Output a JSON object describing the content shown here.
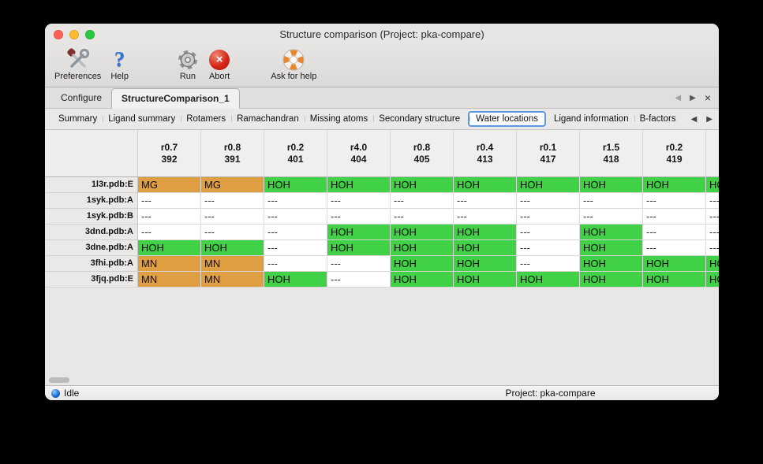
{
  "window": {
    "title": "Structure comparison (Project: pka-compare)"
  },
  "traffic_lights": {
    "close": "#ff5f57",
    "minimize": "#febc2e",
    "zoom": "#28c840"
  },
  "toolbar": {
    "items": [
      {
        "id": "preferences",
        "label": "Preferences",
        "icon": "tools-icon"
      },
      {
        "id": "help",
        "label": "Help",
        "icon": "question-mark-icon"
      },
      {
        "id": "run",
        "label": "Run",
        "icon": "gear-icon"
      },
      {
        "id": "abort",
        "label": "Abort",
        "icon": "abort-cross-icon"
      },
      {
        "id": "ask-for-help",
        "label": "Ask for help",
        "icon": "lifebuoy-icon"
      }
    ]
  },
  "tabbar": {
    "tabs": [
      {
        "label": "Configure",
        "selected": false
      },
      {
        "label": "StructureComparison_1",
        "selected": true
      }
    ],
    "prev": "◀",
    "next": "▶",
    "close": "×"
  },
  "subtabbar": {
    "tabs": [
      {
        "label": "Summary",
        "selected": false
      },
      {
        "label": "Ligand summary",
        "selected": false
      },
      {
        "label": "Rotamers",
        "selected": false
      },
      {
        "label": "Ramachandran",
        "selected": false
      },
      {
        "label": "Missing atoms",
        "selected": false
      },
      {
        "label": "Secondary structure",
        "selected": false
      },
      {
        "label": "Water locations",
        "selected": true
      },
      {
        "label": "Ligand information",
        "selected": false
      },
      {
        "label": "B-factors",
        "selected": false
      }
    ],
    "prev": "◀",
    "next": "▶"
  },
  "table": {
    "cell_colors": {
      "water": "#40d147",
      "metal": "#df9e42",
      "none": "#ffffff"
    },
    "columns": [
      {
        "line1": "r0.7",
        "line2": "392"
      },
      {
        "line1": "r0.8",
        "line2": "391"
      },
      {
        "line1": "r0.2",
        "line2": "401"
      },
      {
        "line1": "r4.0",
        "line2": "404"
      },
      {
        "line1": "r0.8",
        "line2": "405"
      },
      {
        "line1": "r0.4",
        "line2": "413"
      },
      {
        "line1": "r0.1",
        "line2": "417"
      },
      {
        "line1": "r1.5",
        "line2": "418"
      },
      {
        "line1": "r0.2",
        "line2": "419"
      },
      {
        "line1": "",
        "line2": ""
      }
    ],
    "rows": [
      {
        "label": "1l3r.pdb:E",
        "cells": [
          {
            "text": "MG",
            "type": "metal"
          },
          {
            "text": "MG",
            "type": "metal"
          },
          {
            "text": "HOH",
            "type": "water"
          },
          {
            "text": "HOH",
            "type": "water"
          },
          {
            "text": "HOH",
            "type": "water"
          },
          {
            "text": "HOH",
            "type": "water"
          },
          {
            "text": "HOH",
            "type": "water"
          },
          {
            "text": "HOH",
            "type": "water"
          },
          {
            "text": "HOH",
            "type": "water"
          },
          {
            "text": "HOH",
            "type": "water"
          }
        ]
      },
      {
        "label": "1syk.pdb:A",
        "cells": [
          {
            "text": "---",
            "type": "none"
          },
          {
            "text": "---",
            "type": "none"
          },
          {
            "text": "---",
            "type": "none"
          },
          {
            "text": "---",
            "type": "none"
          },
          {
            "text": "---",
            "type": "none"
          },
          {
            "text": "---",
            "type": "none"
          },
          {
            "text": "---",
            "type": "none"
          },
          {
            "text": "---",
            "type": "none"
          },
          {
            "text": "---",
            "type": "none"
          },
          {
            "text": "---",
            "type": "none"
          }
        ]
      },
      {
        "label": "1syk.pdb:B",
        "cells": [
          {
            "text": "---",
            "type": "none"
          },
          {
            "text": "---",
            "type": "none"
          },
          {
            "text": "---",
            "type": "none"
          },
          {
            "text": "---",
            "type": "none"
          },
          {
            "text": "---",
            "type": "none"
          },
          {
            "text": "---",
            "type": "none"
          },
          {
            "text": "---",
            "type": "none"
          },
          {
            "text": "---",
            "type": "none"
          },
          {
            "text": "---",
            "type": "none"
          },
          {
            "text": "---",
            "type": "none"
          }
        ]
      },
      {
        "label": "3dnd.pdb:A",
        "cells": [
          {
            "text": "---",
            "type": "none"
          },
          {
            "text": "---",
            "type": "none"
          },
          {
            "text": "---",
            "type": "none"
          },
          {
            "text": "HOH",
            "type": "water"
          },
          {
            "text": "HOH",
            "type": "water"
          },
          {
            "text": "HOH",
            "type": "water"
          },
          {
            "text": "---",
            "type": "none"
          },
          {
            "text": "HOH",
            "type": "water"
          },
          {
            "text": "---",
            "type": "none"
          },
          {
            "text": "---",
            "type": "none"
          }
        ]
      },
      {
        "label": "3dne.pdb:A",
        "cells": [
          {
            "text": "HOH",
            "type": "water"
          },
          {
            "text": "HOH",
            "type": "water"
          },
          {
            "text": "---",
            "type": "none"
          },
          {
            "text": "HOH",
            "type": "water"
          },
          {
            "text": "HOH",
            "type": "water"
          },
          {
            "text": "HOH",
            "type": "water"
          },
          {
            "text": "---",
            "type": "none"
          },
          {
            "text": "HOH",
            "type": "water"
          },
          {
            "text": "---",
            "type": "none"
          },
          {
            "text": "---",
            "type": "none"
          }
        ]
      },
      {
        "label": "3fhi.pdb:A",
        "cells": [
          {
            "text": "MN",
            "type": "metal"
          },
          {
            "text": "MN",
            "type": "metal"
          },
          {
            "text": "---",
            "type": "none"
          },
          {
            "text": "---",
            "type": "none"
          },
          {
            "text": "HOH",
            "type": "water"
          },
          {
            "text": "HOH",
            "type": "water"
          },
          {
            "text": "---",
            "type": "none"
          },
          {
            "text": "HOH",
            "type": "water"
          },
          {
            "text": "HOH",
            "type": "water"
          },
          {
            "text": "HOH",
            "type": "water"
          }
        ]
      },
      {
        "label": "3fjq.pdb:E",
        "cells": [
          {
            "text": "MN",
            "type": "metal"
          },
          {
            "text": "MN",
            "type": "metal"
          },
          {
            "text": "HOH",
            "type": "water"
          },
          {
            "text": "---",
            "type": "none"
          },
          {
            "text": "HOH",
            "type": "water"
          },
          {
            "text": "HOH",
            "type": "water"
          },
          {
            "text": "HOH",
            "type": "water"
          },
          {
            "text": "HOH",
            "type": "water"
          },
          {
            "text": "HOH",
            "type": "water"
          },
          {
            "text": "HOH",
            "type": "water"
          }
        ]
      }
    ]
  },
  "statusbar": {
    "state": "Idle",
    "project": "Project: pka-compare"
  }
}
